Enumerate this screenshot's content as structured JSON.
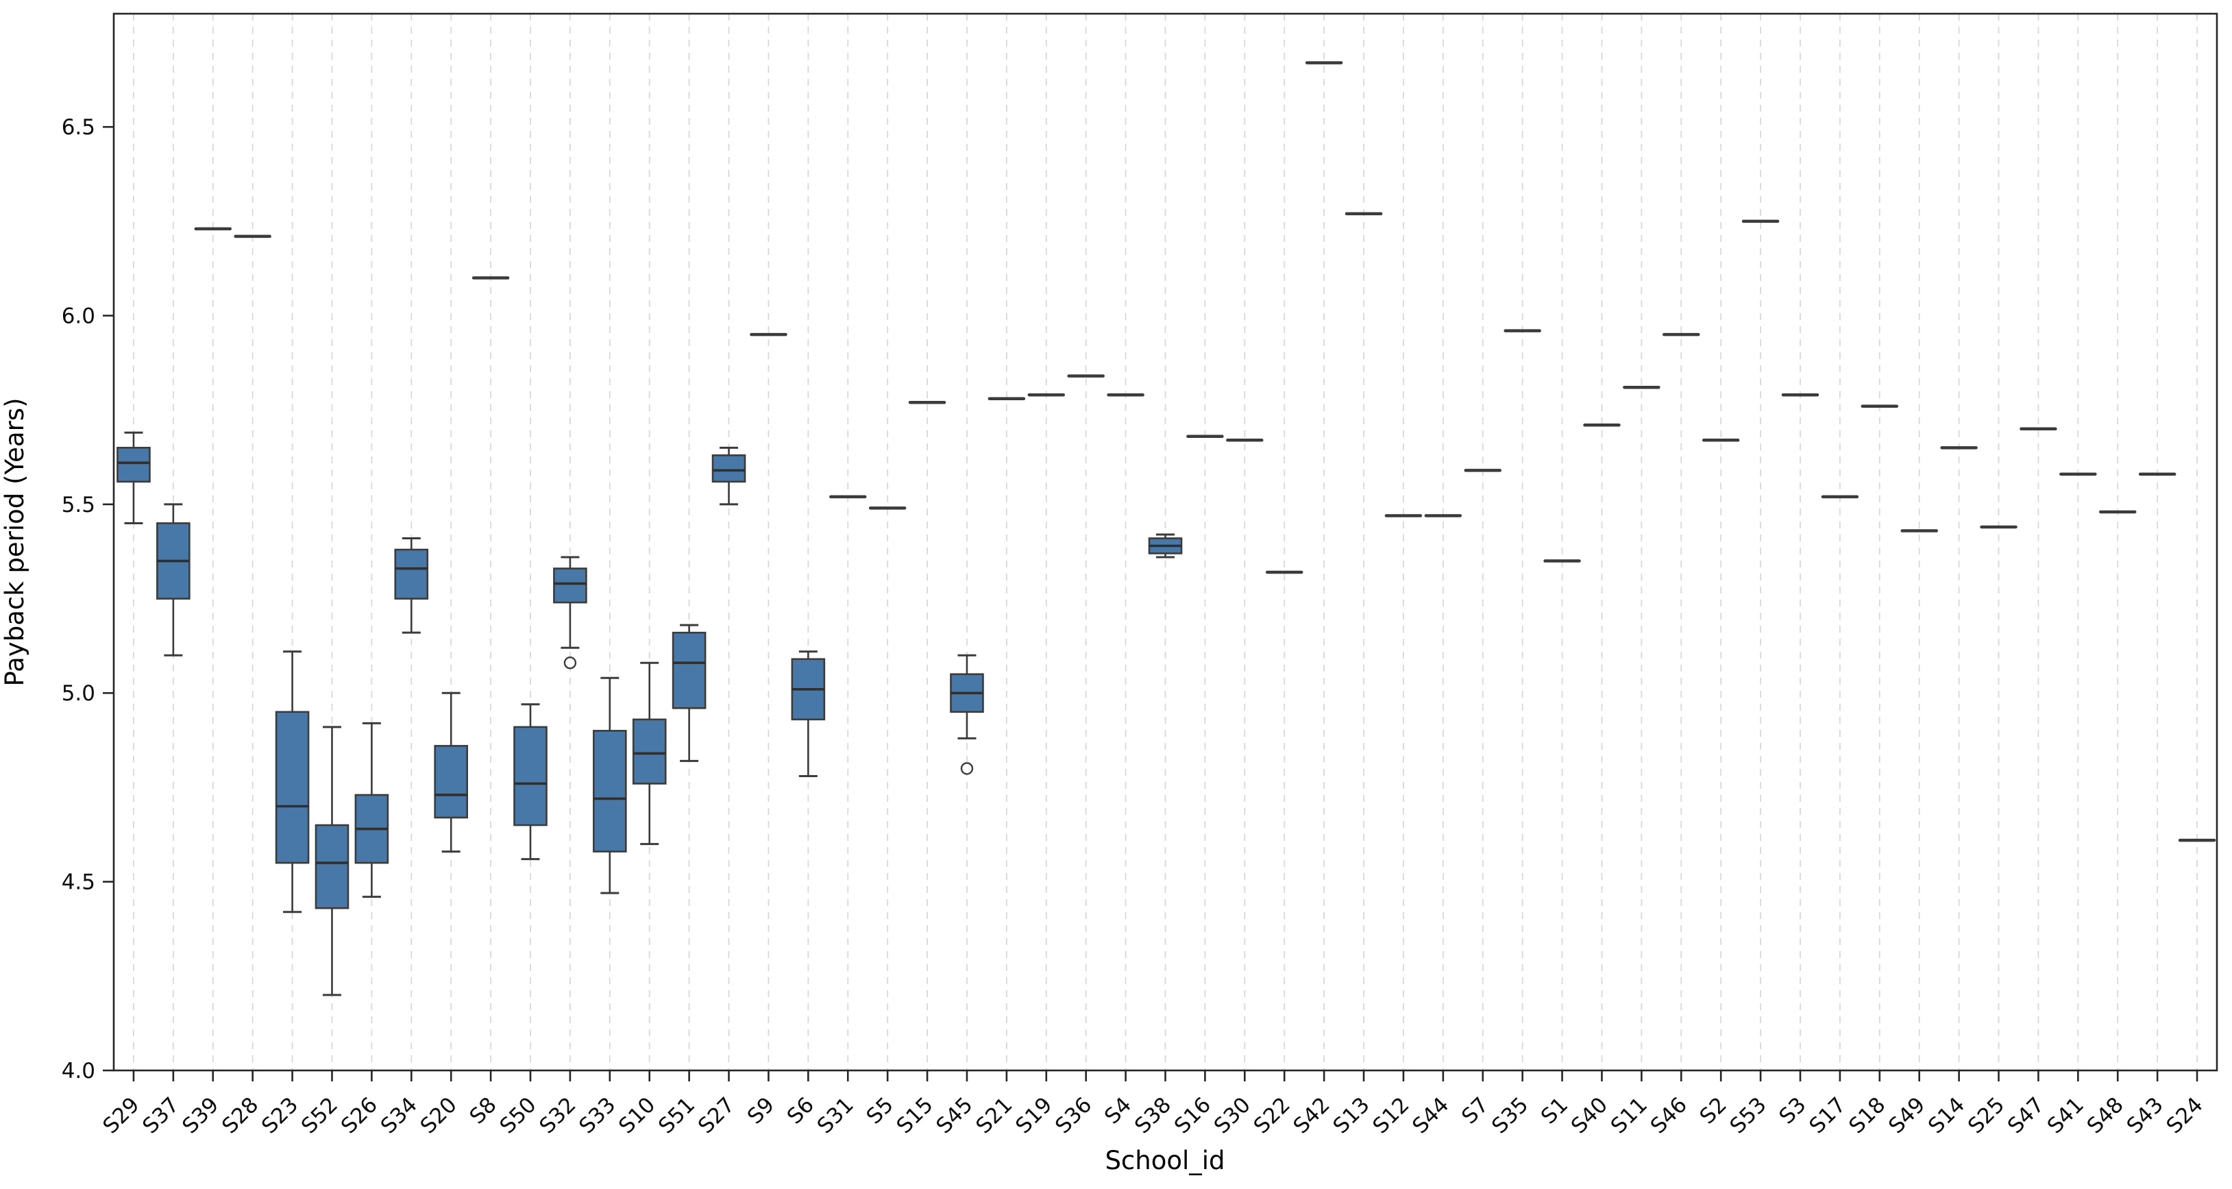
{
  "style": {
    "background": "#ffffff",
    "box_fill": "#4878a8",
    "box_edge": "#3b3b3b",
    "median_color": "#2f2f2f",
    "whisker_color": "#3b3b3b",
    "single_line_color": "#3b3b3b",
    "outlier_fill": "#ffffff",
    "grid_color": "#d8d8d8",
    "spine_color": "#262626",
    "tick_label_color": "#0d0d0d",
    "axis_label_color": "#000000"
  },
  "chart_data": {
    "type": "boxplot",
    "title": "",
    "xlabel": "School_id",
    "ylabel": "Payback period (Years)",
    "ylim": [
      4.0,
      6.8
    ],
    "yticks": [
      4.0,
      4.5,
      5.0,
      5.5,
      6.0,
      6.5
    ],
    "grid": "vertical-dashed",
    "legend": "none",
    "categories": [
      "S29",
      "S37",
      "S39",
      "S28",
      "S23",
      "S52",
      "S26",
      "S34",
      "S20",
      "S8",
      "S50",
      "S32",
      "S33",
      "S10",
      "S51",
      "S27",
      "S9",
      "S6",
      "S31",
      "S5",
      "S15",
      "S45",
      "S21",
      "S19",
      "S36",
      "S4",
      "S38",
      "S16",
      "S30",
      "S22",
      "S42",
      "S13",
      "S12",
      "S44",
      "S7",
      "S35",
      "S1",
      "S40",
      "S11",
      "S46",
      "S2",
      "S53",
      "S3",
      "S17",
      "S18",
      "S49",
      "S14",
      "S25",
      "S47",
      "S41",
      "S48",
      "S43",
      "S24"
    ],
    "series": [
      {
        "school": "S29",
        "type": "box",
        "whislo": 5.45,
        "q1": 5.56,
        "med": 5.61,
        "q3": 5.65,
        "whishi": 5.69,
        "outliers": []
      },
      {
        "school": "S37",
        "type": "box",
        "whislo": 5.1,
        "q1": 5.25,
        "med": 5.35,
        "q3": 5.45,
        "whishi": 5.5,
        "outliers": []
      },
      {
        "school": "S39",
        "type": "single",
        "value": 6.23
      },
      {
        "school": "S28",
        "type": "single",
        "value": 6.21
      },
      {
        "school": "S23",
        "type": "box",
        "whislo": 4.42,
        "q1": 4.55,
        "med": 4.7,
        "q3": 4.95,
        "whishi": 5.11,
        "outliers": []
      },
      {
        "school": "S52",
        "type": "box",
        "whislo": 4.2,
        "q1": 4.43,
        "med": 4.55,
        "q3": 4.65,
        "whishi": 4.91,
        "outliers": []
      },
      {
        "school": "S26",
        "type": "box",
        "whislo": 4.46,
        "q1": 4.55,
        "med": 4.64,
        "q3": 4.73,
        "whishi": 4.92,
        "outliers": []
      },
      {
        "school": "S34",
        "type": "box",
        "whislo": 5.16,
        "q1": 5.25,
        "med": 5.33,
        "q3": 5.38,
        "whishi": 5.41,
        "outliers": []
      },
      {
        "school": "S20",
        "type": "box",
        "whislo": 4.58,
        "q1": 4.67,
        "med": 4.73,
        "q3": 4.86,
        "whishi": 5.0,
        "outliers": []
      },
      {
        "school": "S8",
        "type": "single",
        "value": 6.1
      },
      {
        "school": "S50",
        "type": "box",
        "whislo": 4.56,
        "q1": 4.65,
        "med": 4.76,
        "q3": 4.91,
        "whishi": 4.97,
        "outliers": []
      },
      {
        "school": "S32",
        "type": "box",
        "whislo": 5.12,
        "q1": 5.24,
        "med": 5.29,
        "q3": 5.33,
        "whishi": 5.36,
        "outliers": [
          5.08
        ]
      },
      {
        "school": "S33",
        "type": "box",
        "whislo": 4.47,
        "q1": 4.58,
        "med": 4.72,
        "q3": 4.9,
        "whishi": 5.04,
        "outliers": []
      },
      {
        "school": "S10",
        "type": "box",
        "whislo": 4.6,
        "q1": 4.76,
        "med": 4.84,
        "q3": 4.93,
        "whishi": 5.08,
        "outliers": []
      },
      {
        "school": "S51",
        "type": "box",
        "whislo": 4.82,
        "q1": 4.96,
        "med": 5.08,
        "q3": 5.16,
        "whishi": 5.18,
        "outliers": []
      },
      {
        "school": "S27",
        "type": "box",
        "whislo": 5.5,
        "q1": 5.56,
        "med": 5.59,
        "q3": 5.63,
        "whishi": 5.65,
        "outliers": []
      },
      {
        "school": "S9",
        "type": "single",
        "value": 5.95
      },
      {
        "school": "S6",
        "type": "box",
        "whislo": 4.78,
        "q1": 4.93,
        "med": 5.01,
        "q3": 5.09,
        "whishi": 5.11,
        "outliers": []
      },
      {
        "school": "S31",
        "type": "single",
        "value": 5.52
      },
      {
        "school": "S5",
        "type": "single",
        "value": 5.49
      },
      {
        "school": "S15",
        "type": "single",
        "value": 5.77
      },
      {
        "school": "S45",
        "type": "box",
        "whislo": 4.88,
        "q1": 4.95,
        "med": 5.0,
        "q3": 5.05,
        "whishi": 5.1,
        "outliers": [
          4.8
        ]
      },
      {
        "school": "S21",
        "type": "single",
        "value": 5.78
      },
      {
        "school": "S19",
        "type": "single",
        "value": 5.79
      },
      {
        "school": "S36",
        "type": "single",
        "value": 5.84
      },
      {
        "school": "S4",
        "type": "single",
        "value": 5.79
      },
      {
        "school": "S38",
        "type": "box",
        "whislo": 5.36,
        "q1": 5.37,
        "med": 5.39,
        "q3": 5.41,
        "whishi": 5.42,
        "outliers": []
      },
      {
        "school": "S16",
        "type": "single",
        "value": 5.68
      },
      {
        "school": "S30",
        "type": "single",
        "value": 5.67
      },
      {
        "school": "S22",
        "type": "single",
        "value": 5.32
      },
      {
        "school": "S42",
        "type": "single",
        "value": 6.67
      },
      {
        "school": "S13",
        "type": "single",
        "value": 6.27
      },
      {
        "school": "S12",
        "type": "single",
        "value": 5.47
      },
      {
        "school": "S44",
        "type": "single",
        "value": 5.47
      },
      {
        "school": "S7",
        "type": "single",
        "value": 5.59
      },
      {
        "school": "S35",
        "type": "single",
        "value": 5.96
      },
      {
        "school": "S1",
        "type": "single",
        "value": 5.35
      },
      {
        "school": "S40",
        "type": "single",
        "value": 5.71
      },
      {
        "school": "S11",
        "type": "single",
        "value": 5.81
      },
      {
        "school": "S46",
        "type": "single",
        "value": 5.95
      },
      {
        "school": "S2",
        "type": "single",
        "value": 5.67
      },
      {
        "school": "S53",
        "type": "single",
        "value": 6.25
      },
      {
        "school": "S3",
        "type": "single",
        "value": 5.79
      },
      {
        "school": "S17",
        "type": "single",
        "value": 5.52
      },
      {
        "school": "S18",
        "type": "single",
        "value": 5.76
      },
      {
        "school": "S49",
        "type": "single",
        "value": 5.43
      },
      {
        "school": "S14",
        "type": "single",
        "value": 5.65
      },
      {
        "school": "S25",
        "type": "single",
        "value": 5.44
      },
      {
        "school": "S47",
        "type": "single",
        "value": 5.7
      },
      {
        "school": "S41",
        "type": "single",
        "value": 5.58
      },
      {
        "school": "S48",
        "type": "single",
        "value": 5.48
      },
      {
        "school": "S43",
        "type": "single",
        "value": 5.58
      },
      {
        "school": "S24",
        "type": "single",
        "value": 4.61
      }
    ]
  }
}
